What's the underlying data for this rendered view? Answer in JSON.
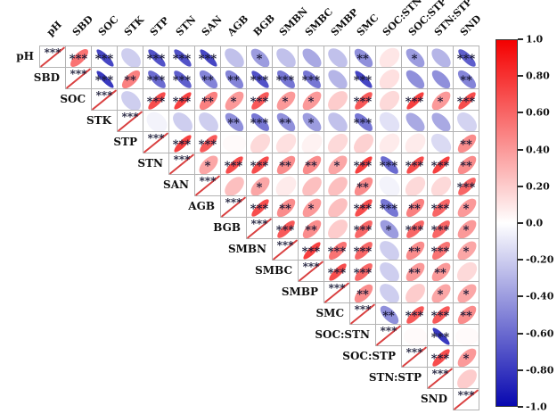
{
  "chart_data": {
    "type": "heatmap",
    "subtype": "correlation-ellipse-matrix-upper-triangle",
    "variables": [
      "pH",
      "SBD",
      "SOC",
      "STK",
      "STP",
      "STN",
      "SAN",
      "AGB",
      "BGB",
      "SMBN",
      "SMBC",
      "SMBP",
      "SMC",
      "SOC:STN",
      "SOC:STP",
      "STN:STP",
      "SND"
    ],
    "diagonal_sig": "***",
    "rows": [
      {
        "name": "pH",
        "cells": [
          [
            0.55,
            "***"
          ],
          [
            -0.75,
            "***"
          ],
          [
            -0.2,
            ""
          ],
          [
            -0.7,
            "***"
          ],
          [
            -0.7,
            "***"
          ],
          [
            -0.75,
            "***"
          ],
          [
            -0.25,
            ""
          ],
          [
            -0.4,
            "*"
          ],
          [
            -0.25,
            ""
          ],
          [
            -0.35,
            ""
          ],
          [
            -0.25,
            ""
          ],
          [
            -0.45,
            "**"
          ],
          [
            0.1,
            ""
          ],
          [
            -0.4,
            "*"
          ],
          [
            -0.3,
            ""
          ],
          [
            -0.65,
            "***"
          ]
        ]
      },
      {
        "name": "SBD",
        "cells": [
          [
            -0.8,
            "***"
          ],
          [
            0.5,
            "**"
          ],
          [
            -0.6,
            "***"
          ],
          [
            -0.65,
            "***"
          ],
          [
            -0.5,
            "**"
          ],
          [
            -0.5,
            "**"
          ],
          [
            -0.7,
            "***"
          ],
          [
            -0.55,
            "***"
          ],
          [
            -0.55,
            "***"
          ],
          [
            -0.3,
            ""
          ],
          [
            -0.75,
            "***"
          ],
          [
            0.12,
            ""
          ],
          [
            -0.45,
            ""
          ],
          [
            -0.45,
            ""
          ],
          [
            -0.5,
            "**"
          ]
        ]
      },
      {
        "name": "SOC",
        "cells": [
          [
            -0.2,
            ""
          ],
          [
            0.7,
            "***"
          ],
          [
            0.75,
            "***"
          ],
          [
            0.5,
            "**"
          ],
          [
            0.4,
            "*"
          ],
          [
            0.65,
            "***"
          ],
          [
            0.4,
            "*"
          ],
          [
            0.4,
            "*"
          ],
          [
            0.2,
            ""
          ],
          [
            0.65,
            "***"
          ],
          [
            0.15,
            ""
          ],
          [
            0.75,
            "***"
          ],
          [
            0.4,
            "*"
          ],
          [
            0.7,
            "***"
          ]
        ]
      },
      {
        "name": "STK",
        "cells": [
          [
            -0.05,
            ""
          ],
          [
            -0.2,
            ""
          ],
          [
            -0.2,
            ""
          ],
          [
            -0.45,
            "**"
          ],
          [
            -0.55,
            "***"
          ],
          [
            -0.45,
            "**"
          ],
          [
            -0.4,
            "*"
          ],
          [
            -0.25,
            ""
          ],
          [
            -0.55,
            "***"
          ],
          [
            -0.12,
            ""
          ],
          [
            -0.35,
            ""
          ],
          [
            -0.35,
            ""
          ],
          [
            -0.18,
            ""
          ]
        ]
      },
      {
        "name": "STP",
        "cells": [
          [
            0.75,
            "***"
          ],
          [
            0.65,
            "***"
          ],
          [
            0.02,
            ""
          ],
          [
            0.15,
            ""
          ],
          [
            0.12,
            ""
          ],
          [
            0.05,
            ""
          ],
          [
            0.15,
            ""
          ],
          [
            0.18,
            ""
          ],
          [
            0.08,
            ""
          ],
          [
            0.08,
            ""
          ],
          [
            -0.15,
            ""
          ],
          [
            0.45,
            "**"
          ]
        ]
      },
      {
        "name": "STN",
        "cells": [
          [
            0.35,
            "*"
          ],
          [
            0.7,
            "***"
          ],
          [
            0.7,
            "***"
          ],
          [
            0.45,
            "**"
          ],
          [
            0.45,
            "**"
          ],
          [
            0.35,
            "*"
          ],
          [
            0.75,
            "***"
          ],
          [
            -0.6,
            "***"
          ],
          [
            0.7,
            "***"
          ],
          [
            0.75,
            "***"
          ],
          [
            0.45,
            "**"
          ]
        ]
      },
      {
        "name": "SAN",
        "cells": [
          [
            0.25,
            ""
          ],
          [
            0.35,
            "*"
          ],
          [
            0.08,
            ""
          ],
          [
            0.25,
            ""
          ],
          [
            0.25,
            ""
          ],
          [
            0.45,
            "**"
          ],
          [
            -0.05,
            ""
          ],
          [
            0.15,
            ""
          ],
          [
            0.15,
            ""
          ],
          [
            0.6,
            "***"
          ]
        ]
      },
      {
        "name": "AGB",
        "cells": [
          [
            0.7,
            "***"
          ],
          [
            0.45,
            "**"
          ],
          [
            0.4,
            "*"
          ],
          [
            0.25,
            ""
          ],
          [
            0.7,
            "***"
          ],
          [
            -0.55,
            "***"
          ],
          [
            0.5,
            "**"
          ],
          [
            0.6,
            "***"
          ],
          [
            0.4,
            "*"
          ]
        ]
      },
      {
        "name": "BGB",
        "cells": [
          [
            0.65,
            "***"
          ],
          [
            0.45,
            "**"
          ],
          [
            0.2,
            ""
          ],
          [
            0.6,
            "***"
          ],
          [
            -0.4,
            "*"
          ],
          [
            0.6,
            "***"
          ],
          [
            0.6,
            "***"
          ],
          [
            0.4,
            "*"
          ]
        ]
      },
      {
        "name": "SMBN",
        "cells": [
          [
            0.75,
            "***"
          ],
          [
            0.55,
            "***"
          ],
          [
            0.6,
            "***"
          ],
          [
            -0.2,
            ""
          ],
          [
            0.45,
            "**"
          ],
          [
            0.55,
            "***"
          ],
          [
            0.35,
            "*"
          ]
        ]
      },
      {
        "name": "SMBC",
        "cells": [
          [
            0.7,
            "***"
          ],
          [
            0.6,
            "***"
          ],
          [
            -0.2,
            ""
          ],
          [
            0.4,
            "**"
          ],
          [
            0.4,
            "**"
          ],
          [
            0.15,
            ""
          ]
        ]
      },
      {
        "name": "SMBP",
        "cells": [
          [
            0.45,
            "**"
          ],
          [
            -0.2,
            ""
          ],
          [
            0.2,
            ""
          ],
          [
            0.35,
            "*"
          ],
          [
            0.35,
            "*"
          ]
        ]
      },
      {
        "name": "SMC",
        "cells": [
          [
            -0.45,
            "**"
          ],
          [
            0.65,
            "***"
          ],
          [
            0.65,
            "***"
          ],
          [
            0.45,
            "**"
          ]
        ]
      },
      {
        "name": "SOC:STN",
        "cells": [
          [
            0.02,
            ""
          ],
          [
            -0.8,
            "***"
          ],
          [
            0.02,
            ""
          ]
        ]
      },
      {
        "name": "SOC:STP",
        "cells": [
          [
            0.7,
            "***"
          ],
          [
            0.4,
            "*"
          ]
        ]
      },
      {
        "name": "STN:STP",
        "cells": [
          [
            0.2,
            ""
          ]
        ]
      },
      {
        "name": "SND",
        "cells": []
      }
    ],
    "legend": {
      "ticks": [
        "1.0",
        "0.80",
        "0.60",
        "0.40",
        "0.20",
        "0.0",
        "-0.20",
        "-0.40",
        "-0.60",
        "-0.80",
        "-1.0"
      ],
      "top_value": 1.0,
      "bottom_value": -1.0
    },
    "colors": {
      "positive_end": "#f40000",
      "negative_end": "#0808b0",
      "star": "#181835",
      "diag_slash": "#d94040",
      "grid_line": "#b3b3b3",
      "background": "#ffffff"
    }
  }
}
